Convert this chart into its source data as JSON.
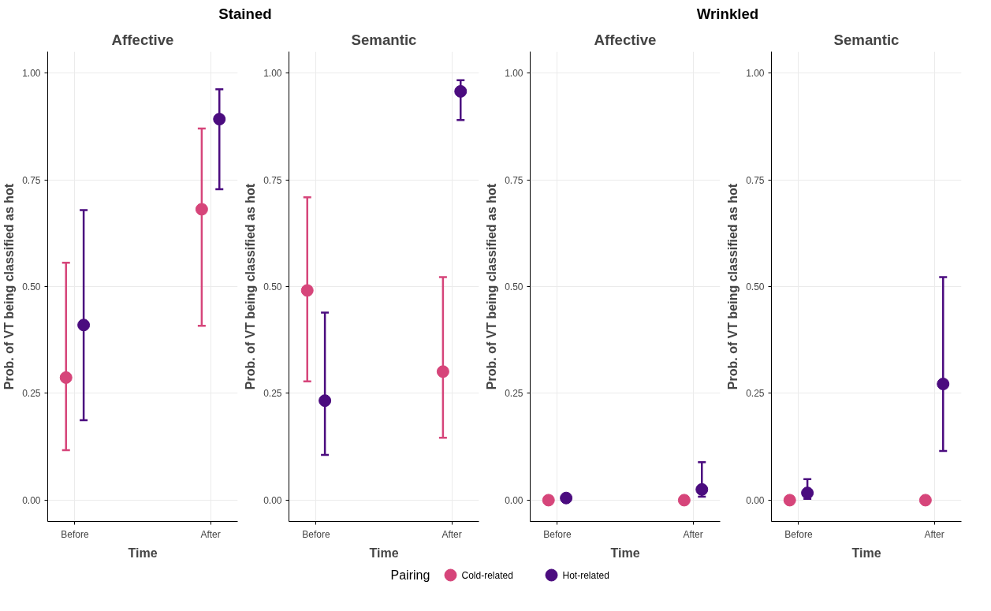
{
  "chart_data": [
    {
      "type": "scatter",
      "annotations": [
        "Stained"
      ],
      "title": "Affective",
      "xlabel": "Time",
      "ylabel": "Prob. of VT being classified as hot",
      "categories": [
        "Before",
        "After"
      ],
      "ylim": [
        -0.05,
        1.05
      ],
      "yticks": [
        {
          "value": 0,
          "label": "0.00"
        },
        {
          "value": 0.25,
          "label": "0.25"
        },
        {
          "value": 0.5,
          "label": "0.50"
        },
        {
          "value": 0.75,
          "label": "0.75"
        },
        {
          "value": 1,
          "label": "1.00"
        }
      ],
      "grid": true,
      "marker": "circle",
      "legend": "bottom",
      "legend_title": "Pairing",
      "series": [
        {
          "name": "Cold-related",
          "color": "#d6457a",
          "values": [
            0.287,
            0.681
          ],
          "errors": [
            [
              0.117,
              0.556
            ],
            [
              0.408,
              0.87
            ]
          ]
        },
        {
          "name": "Hot-related",
          "color": "#4b0c7f",
          "values": [
            0.41,
            0.892
          ],
          "errors": [
            [
              0.187,
              0.679
            ],
            [
              0.728,
              0.962
            ]
          ]
        }
      ]
    },
    {
      "type": "scatter",
      "title": "Semantic",
      "xlabel": "Time",
      "ylabel": "Prob. of VT being classified as hot",
      "categories": [
        "Before",
        "After"
      ],
      "ylim": [
        -0.05,
        1.05
      ],
      "yticks": [
        {
          "value": 0,
          "label": "0.00"
        },
        {
          "value": 0.25,
          "label": "0.25"
        },
        {
          "value": 0.5,
          "label": "0.50"
        },
        {
          "value": 0.75,
          "label": "0.75"
        },
        {
          "value": 1,
          "label": "1.00"
        }
      ],
      "grid": true,
      "marker": "circle",
      "series": [
        {
          "color": "#d6457a",
          "values": [
            0.491,
            0.301
          ],
          "errors": [
            [
              0.278,
              0.709
            ],
            [
              0.146,
              0.522
            ]
          ]
        },
        {
          "color": "#4b0c7f",
          "values": [
            0.233,
            0.957
          ],
          "errors": [
            [
              0.106,
              0.439
            ],
            [
              0.89,
              0.983
            ]
          ]
        }
      ]
    },
    {
      "type": "scatter",
      "annotations": [
        "Wrinkled"
      ],
      "title": "Affective",
      "xlabel": "Time",
      "ylabel": "Prob. of VT being classified as hot",
      "categories": [
        "Before",
        "After"
      ],
      "ylim": [
        -0.05,
        1.05
      ],
      "yticks": [
        {
          "value": 0,
          "label": "0.00"
        },
        {
          "value": 0.25,
          "label": "0.25"
        },
        {
          "value": 0.5,
          "label": "0.50"
        },
        {
          "value": 0.75,
          "label": "0.75"
        },
        {
          "value": 1,
          "label": "1.00"
        }
      ],
      "grid": true,
      "marker": "circle",
      "series": [
        {
          "color": "#d6457a",
          "values": [
            0,
            0
          ],
          "errors": [
            null,
            null
          ]
        },
        {
          "color": "#4b0c7f",
          "values": [
            0.005,
            0.025
          ],
          "errors": [
            null,
            [
              0.008,
              0.089
            ]
          ]
        }
      ]
    },
    {
      "type": "scatter",
      "title": "Semantic",
      "xlabel": "Time",
      "ylabel": "Prob. of VT being classified as hot",
      "categories": [
        "Before",
        "After"
      ],
      "ylim": [
        -0.05,
        1.05
      ],
      "yticks": [
        {
          "value": 0,
          "label": "0.00"
        },
        {
          "value": 0.25,
          "label": "0.25"
        },
        {
          "value": 0.5,
          "label": "0.50"
        },
        {
          "value": 0.75,
          "label": "0.75"
        },
        {
          "value": 1,
          "label": "1.00"
        }
      ],
      "grid": true,
      "marker": "circle",
      "series": [
        {
          "color": "#d6457a",
          "values": [
            0,
            0
          ],
          "errors": [
            null,
            null
          ]
        },
        {
          "color": "#4b0c7f",
          "values": [
            0.017,
            0.272
          ],
          "errors": [
            [
              0.003,
              0.049
            ],
            [
              0.115,
              0.522
            ]
          ]
        }
      ]
    }
  ]
}
